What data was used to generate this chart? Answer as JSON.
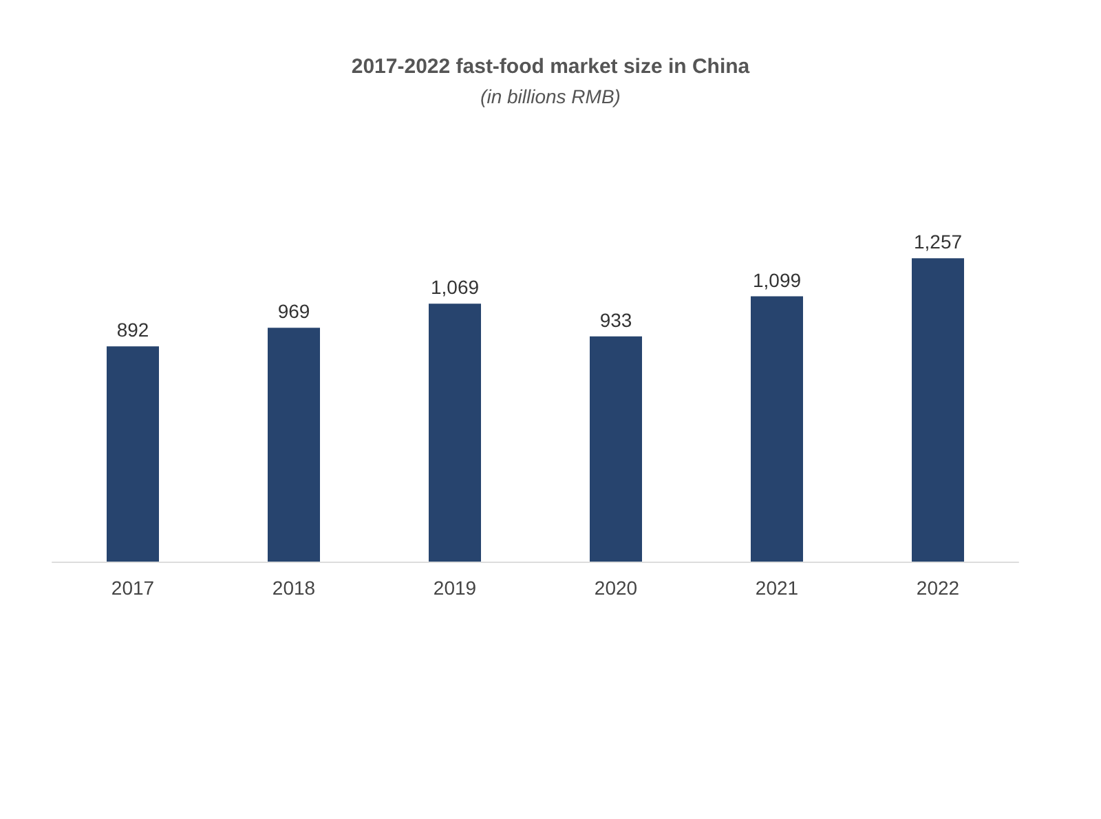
{
  "chart_data": {
    "type": "bar",
    "title": "2017-2022 fast-food market size in China",
    "subtitle": "(in billions RMB)",
    "categories": [
      "2017",
      "2018",
      "2019",
      "2020",
      "2021",
      "2022"
    ],
    "values": [
      892,
      969,
      1069,
      933,
      1099,
      1257
    ],
    "color": "#27446e",
    "value_labels": [
      "892",
      "969",
      "1,069",
      "933",
      "1,099",
      "1,257"
    ]
  }
}
